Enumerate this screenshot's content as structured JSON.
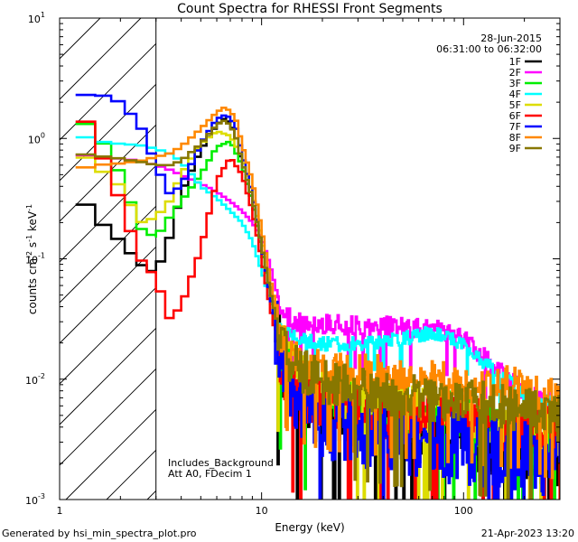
{
  "chart_data": {
    "type": "line",
    "title": "Count Spectra for RHESSI Front Segments",
    "xlabel": "Energy (keV)",
    "ylabel_base": "counts cm",
    "ylabel_exp1": "-2",
    "ylabel_mid": " s",
    "ylabel_exp2": "-1",
    "ylabel_end": " keV",
    "ylabel_exp3": "-1",
    "xscale": "log",
    "yscale": "log",
    "xlim": [
      1,
      300
    ],
    "ylim": [
      0.001,
      10
    ],
    "x_ticks": [
      {
        "value": 1,
        "label": "1"
      },
      {
        "value": 10,
        "label": "10"
      },
      {
        "value": 100,
        "label": "100"
      }
    ],
    "y_ticks": [
      {
        "value": 0.001,
        "base": "10",
        "exp": "-3"
      },
      {
        "value": 0.01,
        "base": "10",
        "exp": "-2"
      },
      {
        "value": 0.1,
        "base": "10",
        "exp": "-1"
      },
      {
        "value": 1,
        "base": "10",
        "exp": "0"
      },
      {
        "value": 10,
        "base": "10",
        "exp": "1"
      }
    ],
    "hatched_region": [
      1,
      3
    ],
    "date": "28-Jun-2015",
    "time_range": "06:31:00 to 06:32:00",
    "annotations": [
      "Includes_Background",
      "Att A0, FDecim 1"
    ],
    "series": [
      {
        "name": "1F",
        "color": "#000000",
        "noise": 0.55,
        "x": [
          1.2,
          1.6,
          2,
          2.5,
          3,
          3.5,
          4,
          5,
          6,
          6.5,
          7,
          7.5,
          8,
          9,
          10,
          11,
          12,
          13,
          15,
          20,
          30,
          50,
          100,
          200,
          300
        ],
        "y": [
          0.35,
          0.2,
          0.14,
          0.09,
          0.075,
          0.15,
          0.35,
          0.8,
          1.3,
          1.45,
          1.35,
          1.0,
          0.6,
          0.3,
          0.12,
          0.05,
          0.025,
          0.012,
          0.008,
          0.006,
          0.005,
          0.004,
          0.0035,
          0.003,
          0.0025
        ]
      },
      {
        "name": "2F",
        "color": "#ff00ff",
        "noise": 0.18,
        "x": [
          1.2,
          1.5,
          2,
          2.5,
          3,
          3.5,
          4,
          5,
          6,
          7,
          8,
          9,
          10,
          11,
          12,
          13,
          15,
          20,
          30,
          50,
          70,
          100,
          150,
          200,
          300
        ],
        "y": [
          0.75,
          0.7,
          0.68,
          0.65,
          0.6,
          0.55,
          0.5,
          0.42,
          0.36,
          0.3,
          0.25,
          0.2,
          0.15,
          0.09,
          0.05,
          0.035,
          0.03,
          0.03,
          0.028,
          0.028,
          0.027,
          0.022,
          0.012,
          0.008,
          0.006
        ]
      },
      {
        "name": "3F",
        "color": "#00ee00",
        "noise": 0.45,
        "x": [
          1.2,
          1.5,
          2,
          2.5,
          3,
          3.5,
          4,
          5,
          6,
          7,
          8,
          9,
          10,
          11,
          12,
          13,
          15,
          20,
          30,
          50,
          100,
          200,
          300
        ],
        "y": [
          1.45,
          1.2,
          0.5,
          0.18,
          0.15,
          0.22,
          0.3,
          0.5,
          0.85,
          0.95,
          0.6,
          0.3,
          0.12,
          0.05,
          0.025,
          0.015,
          0.01,
          0.008,
          0.007,
          0.006,
          0.005,
          0.004,
          0.004
        ]
      },
      {
        "name": "4F",
        "color": "#00ffff",
        "noise": 0.12,
        "x": [
          1.2,
          1.5,
          2,
          2.5,
          3,
          3.5,
          4,
          5,
          6,
          7,
          8,
          9,
          10,
          11,
          12,
          13,
          15,
          20,
          30,
          50,
          70,
          100,
          150,
          200,
          300
        ],
        "y": [
          1.1,
          0.95,
          0.9,
          0.88,
          0.82,
          0.75,
          0.65,
          0.4,
          0.32,
          0.25,
          0.2,
          0.14,
          0.08,
          0.045,
          0.03,
          0.025,
          0.022,
          0.02,
          0.02,
          0.022,
          0.025,
          0.02,
          0.011,
          0.008,
          0.006
        ]
      },
      {
        "name": "5F",
        "color": "#dddd00",
        "noise": 0.45,
        "x": [
          1.2,
          1.5,
          2,
          2.5,
          3,
          3.5,
          4,
          5,
          6,
          7,
          8,
          9,
          10,
          11,
          12,
          13,
          15,
          20,
          30,
          50,
          100,
          200,
          300
        ],
        "y": [
          0.8,
          0.6,
          0.4,
          0.2,
          0.22,
          0.3,
          0.5,
          0.9,
          1.15,
          1.05,
          0.7,
          0.35,
          0.15,
          0.06,
          0.03,
          0.018,
          0.012,
          0.009,
          0.007,
          0.006,
          0.005,
          0.004,
          0.004
        ]
      },
      {
        "name": "6F",
        "color": "#ff0000",
        "noise": 0.45,
        "x": [
          1.2,
          1.5,
          2,
          2.5,
          3,
          3.5,
          4,
          5,
          6,
          7,
          8,
          9,
          10,
          11,
          12,
          13,
          15,
          20,
          30,
          50,
          100,
          200,
          300
        ],
        "y": [
          1.9,
          1.0,
          0.3,
          0.1,
          0.07,
          0.032,
          0.04,
          0.12,
          0.45,
          0.7,
          0.5,
          0.25,
          0.1,
          0.04,
          0.02,
          0.012,
          0.008,
          0.007,
          0.006,
          0.005,
          0.005,
          0.004,
          0.004
        ]
      },
      {
        "name": "7F",
        "color": "#0000ff",
        "noise": 0.65,
        "x": [
          1.2,
          1.5,
          2,
          2.5,
          3,
          3.5,
          4,
          5,
          6,
          6.5,
          7,
          7.5,
          8,
          9,
          10,
          11,
          12,
          13,
          15,
          20,
          30,
          50,
          100,
          200,
          300
        ],
        "y": [
          2.2,
          2.4,
          2.0,
          1.3,
          0.6,
          0.35,
          0.4,
          0.9,
          1.45,
          1.55,
          1.5,
          1.2,
          0.75,
          0.35,
          0.13,
          0.05,
          0.025,
          0.012,
          0.007,
          0.005,
          0.004,
          0.0035,
          0.003,
          0.0025,
          0.002
        ]
      },
      {
        "name": "8F",
        "color": "#ff8800",
        "noise": 0.35,
        "x": [
          1.2,
          1.5,
          2,
          2.5,
          3,
          3.5,
          4,
          5,
          6,
          6.5,
          7,
          7.5,
          8,
          9,
          10,
          11,
          12,
          13,
          15,
          20,
          30,
          50,
          100,
          200,
          300
        ],
        "y": [
          0.55,
          0.6,
          0.62,
          0.65,
          0.7,
          0.75,
          0.85,
          1.2,
          1.65,
          1.8,
          1.7,
          1.4,
          0.9,
          0.45,
          0.18,
          0.07,
          0.035,
          0.02,
          0.015,
          0.013,
          0.012,
          0.011,
          0.01,
          0.009,
          0.007
        ]
      },
      {
        "name": "9F",
        "color": "#887700",
        "noise": 0.4,
        "x": [
          1.2,
          1.5,
          2,
          2.5,
          3,
          3.5,
          4,
          5,
          6,
          6.5,
          7,
          7.5,
          8,
          9,
          10,
          11,
          12,
          13,
          15,
          20,
          30,
          50,
          100,
          200,
          300
        ],
        "y": [
          0.75,
          0.72,
          0.68,
          0.64,
          0.6,
          0.6,
          0.65,
          0.9,
          1.3,
          1.4,
          1.3,
          1.0,
          0.65,
          0.32,
          0.13,
          0.055,
          0.028,
          0.018,
          0.013,
          0.01,
          0.009,
          0.008,
          0.007,
          0.006,
          0.005
        ]
      }
    ]
  },
  "footer": {
    "generated_by": "Generated by hsi_min_spectra_plot.pro",
    "timestamp": "21-Apr-2023 13:20"
  }
}
